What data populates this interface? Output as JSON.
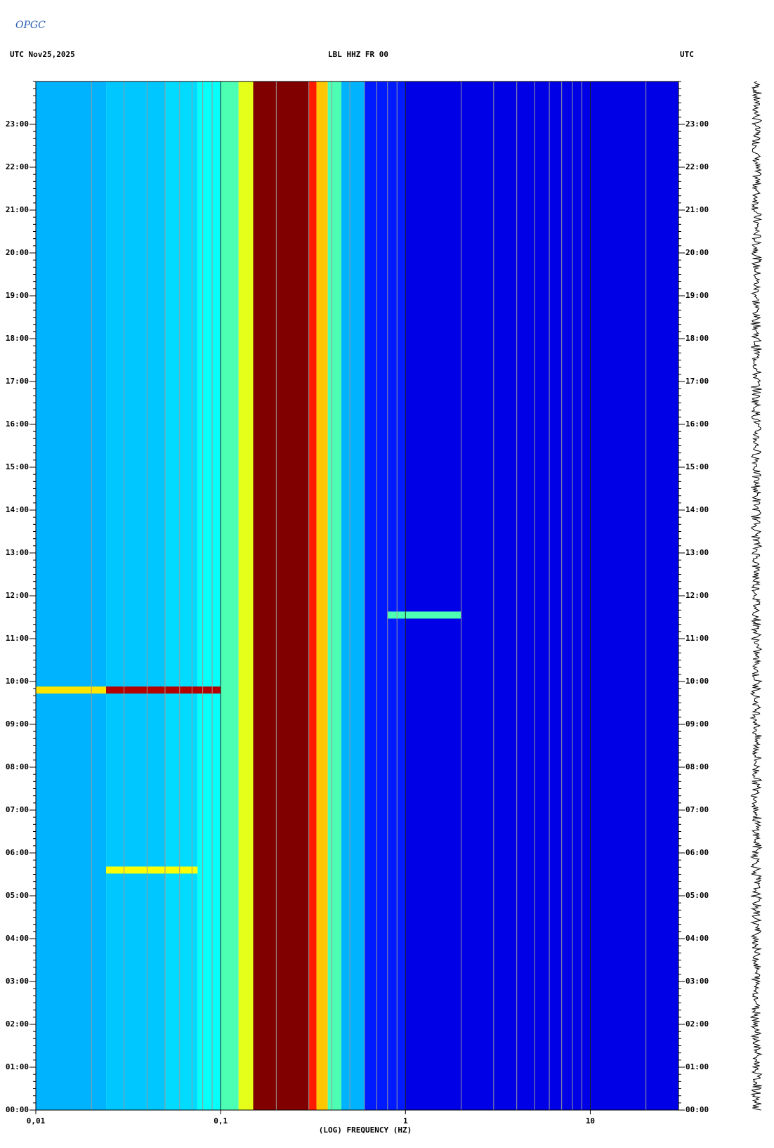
{
  "logo": "OPGC",
  "chart_data": {
    "type": "spectrogram",
    "title_left": "UTC  Nov25,2025",
    "title": "LBL HHZ FR 00",
    "title_right": "UTC",
    "xlabel": "(LOG) FREQUENCY (HZ)",
    "xscale": "log",
    "xlim": [
      0.01,
      30
    ],
    "xticks": [
      {
        "value": 0.01,
        "label": "0,01"
      },
      {
        "value": 0.1,
        "label": "0,1"
      },
      1,
      10
    ],
    "xminor": [
      0.02,
      0.03,
      0.04,
      0.05,
      0.06,
      0.07,
      0.08,
      0.09,
      0.2,
      0.3,
      0.4,
      0.5,
      0.6,
      0.7,
      0.8,
      0.9,
      2,
      3,
      4,
      5,
      6,
      7,
      8,
      9,
      20
    ],
    "ylim": [
      0,
      24
    ],
    "yticks": [
      {
        "value": 0,
        "label": "00:00"
      },
      {
        "value": 1,
        "label": "01:00"
      },
      {
        "value": 2,
        "label": "02:00"
      },
      {
        "value": 3,
        "label": "03:00"
      },
      {
        "value": 4,
        "label": "04:00"
      },
      {
        "value": 5,
        "label": "05:00"
      },
      {
        "value": 6,
        "label": "06:00"
      },
      {
        "value": 7,
        "label": "07:00"
      },
      {
        "value": 8,
        "label": "08:00"
      },
      {
        "value": 9,
        "label": "09:00"
      },
      {
        "value": 10,
        "label": "10:00"
      },
      {
        "value": 11,
        "label": "11:00"
      },
      {
        "value": 12,
        "label": "12:00"
      },
      {
        "value": 13,
        "label": "13:00"
      },
      {
        "value": 14,
        "label": "14:00"
      },
      {
        "value": 15,
        "label": "15:00"
      },
      {
        "value": 16,
        "label": "16:00"
      },
      {
        "value": 17,
        "label": "17:00"
      },
      {
        "value": 18,
        "label": "18:00"
      },
      {
        "value": 19,
        "label": "19:00"
      },
      {
        "value": 20,
        "label": "20:00"
      },
      {
        "value": 21,
        "label": "21:00"
      },
      {
        "value": 22,
        "label": "22:00"
      },
      {
        "value": 23,
        "label": "23:00"
      }
    ],
    "colormap": "jet",
    "bin_edges": [
      0.01,
      0.024,
      0.05,
      0.075,
      0.1,
      0.125,
      0.15,
      0.3,
      0.33,
      0.38,
      0.45,
      0.6,
      1,
      30
    ],
    "values": [
      0.3,
      0.32,
      0.34,
      0.38,
      0.45,
      0.6,
      1.0,
      0.85,
      0.68,
      0.45,
      0.3,
      0.15,
      0.1
    ],
    "events": [
      {
        "time": 9.8,
        "freq": [
          0.01,
          0.024
        ],
        "value": 0.65
      },
      {
        "time": 9.8,
        "freq": [
          0.024,
          0.1
        ],
        "value": 0.95
      },
      {
        "time": 5.6,
        "freq": [
          0.024,
          0.075
        ],
        "value": 0.62
      },
      {
        "time": 11.55,
        "freq": [
          0.8,
          2
        ],
        "value": 0.45
      }
    ]
  }
}
